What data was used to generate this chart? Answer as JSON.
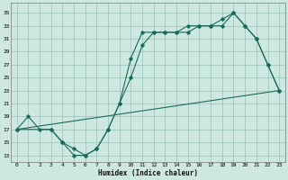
{
  "xlabel": "Humidex (Indice chaleur)",
  "bg_color": "#cce8e0",
  "grid_color": "#a0c8be",
  "line_color": "#1a6b5a",
  "xlim": [
    -0.5,
    23.5
  ],
  "ylim": [
    12,
    36.5
  ],
  "xticks": [
    0,
    1,
    2,
    3,
    4,
    5,
    6,
    7,
    8,
    9,
    10,
    11,
    12,
    13,
    14,
    15,
    16,
    17,
    18,
    19,
    20,
    21,
    22,
    23
  ],
  "yticks": [
    13,
    15,
    17,
    19,
    21,
    23,
    25,
    27,
    29,
    31,
    33,
    35
  ],
  "curve1_x": [
    0,
    1,
    2,
    3,
    4,
    5,
    6,
    7,
    8,
    9,
    10,
    11,
    12,
    13,
    14,
    15,
    16,
    17,
    18,
    19,
    20,
    21,
    22,
    23
  ],
  "curve1_y": [
    17,
    19,
    17,
    17,
    15,
    13,
    13,
    14,
    17,
    21,
    28,
    32,
    32,
    32,
    32,
    32,
    33,
    33,
    33,
    35,
    33,
    31,
    27,
    23
  ],
  "curve2_x": [
    0,
    3,
    4,
    5,
    6,
    7,
    8,
    9,
    10,
    11,
    12,
    13,
    14,
    15,
    16,
    17,
    18,
    19,
    20,
    21,
    22,
    23
  ],
  "curve2_y": [
    17,
    17,
    15,
    14,
    13,
    14,
    17,
    21,
    25,
    30,
    32,
    32,
    32,
    33,
    33,
    33,
    34,
    35,
    33,
    31,
    27,
    23
  ],
  "line3_x": [
    0,
    23
  ],
  "line3_y": [
    17,
    23
  ]
}
